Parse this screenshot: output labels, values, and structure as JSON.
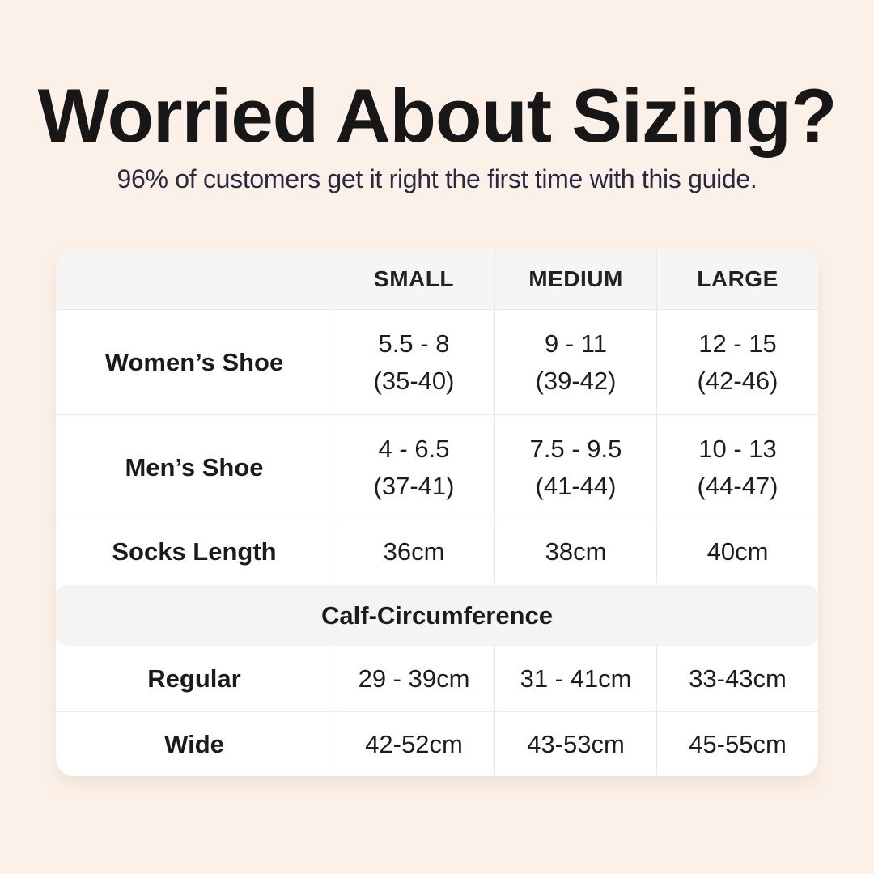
{
  "page": {
    "background_color": "#FCF1E8",
    "card_color": "#FFFFFF",
    "band_color": "#F5F4F2",
    "divider_color": "#E9E7E4",
    "title_color": "#171717",
    "subtitle_color": "#29293F"
  },
  "header": {
    "title": "Worried About Sizing?",
    "subtitle": "96% of customers get it right the first time with this guide."
  },
  "table": {
    "columns": [
      "",
      "SMALL",
      "MEDIUM",
      "LARGE"
    ],
    "rows": [
      {
        "label": "Women’s Shoe",
        "cells": [
          {
            "l1": "5.5 - 8",
            "l2": "(35-40)"
          },
          {
            "l1": "9 - 11",
            "l2": "(39-42)"
          },
          {
            "l1": "12 - 15",
            "l2": "(42-46)"
          }
        ]
      },
      {
        "label": "Men’s Shoe",
        "cells": [
          {
            "l1": "4 - 6.5",
            "l2": "(37-41)"
          },
          {
            "l1": "7.5 - 9.5",
            "l2": "(41-44)"
          },
          {
            "l1": "10 - 13",
            "l2": "(44-47)"
          }
        ]
      },
      {
        "label": "Socks Length",
        "cells": [
          {
            "l1": "36cm"
          },
          {
            "l1": "38cm"
          },
          {
            "l1": "40cm"
          }
        ]
      }
    ],
    "section_header": "Calf-Circumference",
    "section_rows": [
      {
        "label": "Regular",
        "cells": [
          {
            "l1": "29 - 39cm"
          },
          {
            "l1": "31 - 41cm"
          },
          {
            "l1": "33-43cm"
          }
        ]
      },
      {
        "label": "Wide",
        "cells": [
          {
            "l1": "42-52cm"
          },
          {
            "l1": "43-53cm"
          },
          {
            "l1": "45-55cm"
          }
        ]
      }
    ]
  },
  "chart_data": {
    "type": "table",
    "title": "Worried About Sizing?",
    "subtitle": "96% of customers get it right the first time with this guide.",
    "columns": [
      "",
      "SMALL",
      "MEDIUM",
      "LARGE"
    ],
    "rows": [
      [
        "Women’s Shoe",
        "5.5 - 8 (35-40)",
        "9 - 11 (39-42)",
        "12 - 15 (42-46)"
      ],
      [
        "Men’s Shoe",
        "4 - 6.5 (37-41)",
        "7.5 - 9.5 (41-44)",
        "10 - 13 (44-47)"
      ],
      [
        "Socks Length",
        "36cm",
        "38cm",
        "40cm"
      ],
      [
        "Calf-Circumference — Regular",
        "29 - 39cm",
        "31 - 41cm",
        "33-43cm"
      ],
      [
        "Calf-Circumference — Wide",
        "42-52cm",
        "43-53cm",
        "45-55cm"
      ]
    ]
  }
}
